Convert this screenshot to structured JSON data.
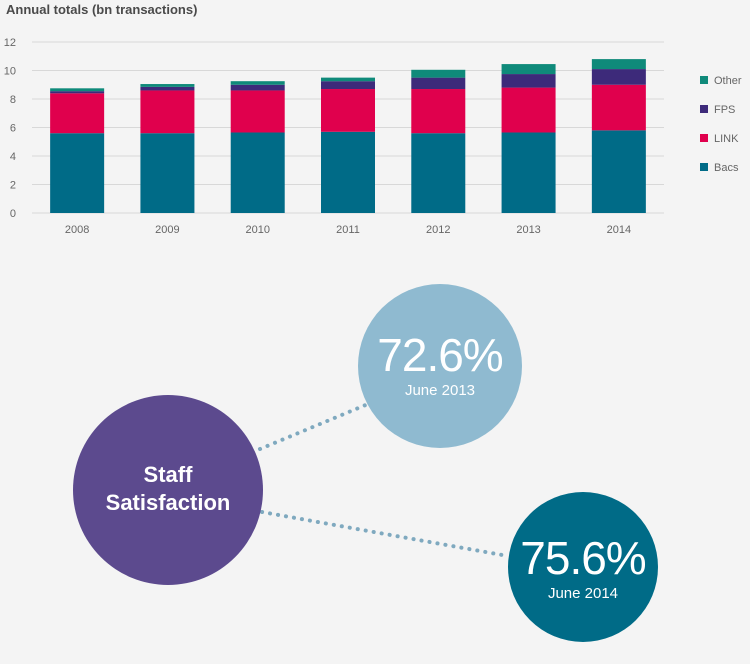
{
  "chart_data": {
    "type": "bar",
    "stacked": true,
    "title": "Annual totals (bn transactions)",
    "categories": [
      "2008",
      "2009",
      "2010",
      "2011",
      "2012",
      "2013",
      "2014"
    ],
    "ylim": [
      0,
      12
    ],
    "yticks": [
      0,
      2,
      4,
      6,
      8,
      10,
      12
    ],
    "grid": true,
    "legend_position": "right",
    "series": [
      {
        "name": "Bacs",
        "color": "#006b87",
        "values": [
          5.6,
          5.6,
          5.65,
          5.7,
          5.6,
          5.65,
          5.8
        ]
      },
      {
        "name": "LINK",
        "color": "#e0004d",
        "values": [
          2.8,
          3.0,
          2.95,
          3.0,
          3.1,
          3.15,
          3.2
        ]
      },
      {
        "name": "FPS",
        "color": "#3d2a7a",
        "values": [
          0.15,
          0.25,
          0.4,
          0.55,
          0.8,
          0.95,
          1.1
        ]
      },
      {
        "name": "Other",
        "color": "#0f8a7a",
        "values": [
          0.2,
          0.2,
          0.25,
          0.25,
          0.55,
          0.7,
          0.7
        ]
      }
    ]
  },
  "satisfaction": {
    "label": "Staff Satisfaction",
    "label_line1": "Staff",
    "label_line2": "Satisfaction",
    "main_color": "#5c4a8e",
    "items": [
      {
        "value": "72.6%",
        "date": "June 2013",
        "color": "#8fbad0"
      },
      {
        "value": "75.6%",
        "date": "June 2014",
        "color": "#006b87"
      }
    ]
  }
}
